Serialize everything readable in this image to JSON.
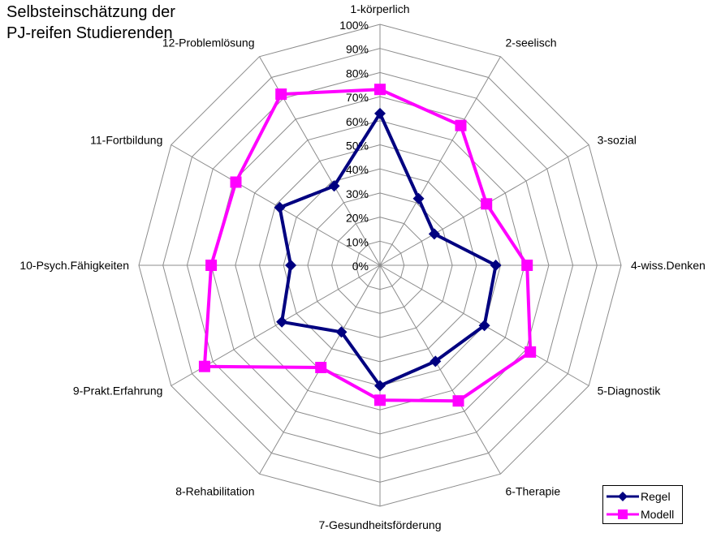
{
  "chart_data": {
    "type": "radar",
    "title_lines": [
      "Selbsteinschätzung der",
      "PJ-reifen Studierenden"
    ],
    "categories": [
      "1-körperlich",
      "2-seelisch",
      "3-sozial",
      "4-wiss.Denken",
      "5-Diagnostik",
      "6-Therapie",
      "7-Gesundheitsförderung",
      "8-Rehabilitation",
      "9-Prakt.Erfahrung",
      "10-Psych.Fähigkeiten",
      "11-Fortbildung",
      "12-Problemlösung"
    ],
    "tick_labels": [
      "0%",
      "10%",
      "20%",
      "30%",
      "40%",
      "50%",
      "60%",
      "70%",
      "80%",
      "90%",
      "100%"
    ],
    "rmax": 100,
    "series": [
      {
        "name": "Regel",
        "color": "#000080",
        "marker": "diamond",
        "values": [
          63,
          32,
          26,
          48,
          50,
          46,
          50,
          32,
          47,
          37,
          48,
          38
        ]
      },
      {
        "name": "Modell",
        "color": "#ff00ff",
        "marker": "square",
        "values": [
          73,
          67,
          51,
          61,
          72,
          65,
          56,
          49,
          84,
          70,
          69,
          82
        ]
      }
    ],
    "grid": true,
    "legend_position": "bottom-right"
  }
}
